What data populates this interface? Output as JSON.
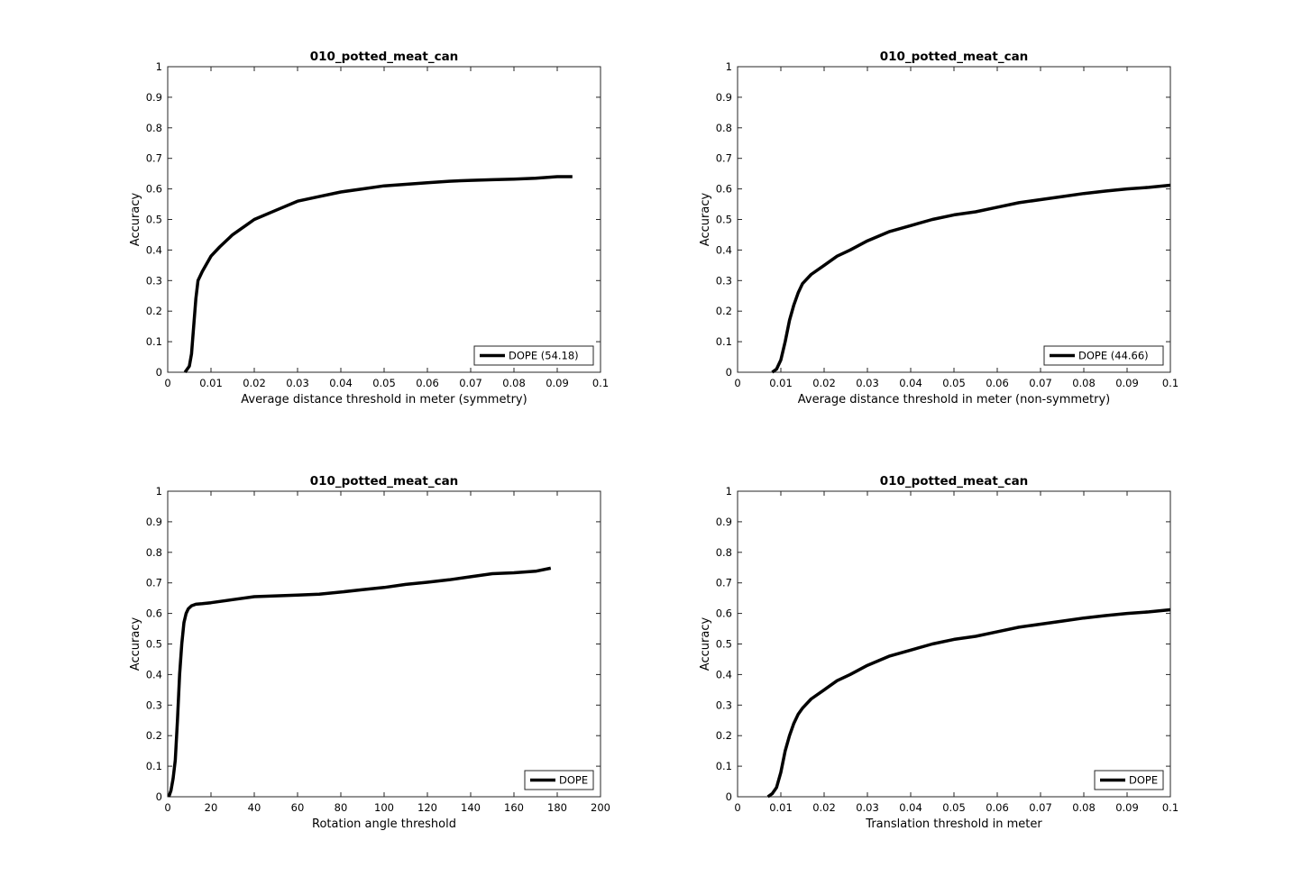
{
  "chart_data": [
    {
      "type": "line",
      "title": "010_potted_meat_can",
      "xlabel": "Average distance threshold in meter (symmetry)",
      "ylabel": "Accuracy",
      "xlim": [
        0,
        0.1
      ],
      "ylim": [
        0,
        1
      ],
      "xticks": [
        "0",
        "0.01",
        "0.02",
        "0.03",
        "0.04",
        "0.05",
        "0.06",
        "0.07",
        "0.08",
        "0.09",
        "0.1"
      ],
      "yticks": [
        "0",
        "0.1",
        "0.2",
        "0.3",
        "0.4",
        "0.5",
        "0.6",
        "0.7",
        "0.8",
        "0.9",
        "1"
      ],
      "grid": false,
      "legend_position": "bottom-right",
      "series": [
        {
          "name": "DOPE (54.18)",
          "color": "#000000",
          "x": [
            0.004,
            0.005,
            0.0055,
            0.006,
            0.0065,
            0.007,
            0.008,
            0.01,
            0.012,
            0.015,
            0.018,
            0.02,
            0.025,
            0.03,
            0.035,
            0.04,
            0.045,
            0.05,
            0.055,
            0.06,
            0.065,
            0.07,
            0.075,
            0.08,
            0.085,
            0.09,
            0.0935
          ],
          "y": [
            0,
            0.02,
            0.06,
            0.15,
            0.24,
            0.3,
            0.33,
            0.38,
            0.41,
            0.45,
            0.48,
            0.5,
            0.53,
            0.56,
            0.575,
            0.59,
            0.6,
            0.61,
            0.615,
            0.62,
            0.625,
            0.628,
            0.63,
            0.632,
            0.635,
            0.64,
            0.64
          ]
        }
      ]
    },
    {
      "type": "line",
      "title": "010_potted_meat_can",
      "xlabel": "Average distance threshold in meter (non-symmetry)",
      "ylabel": "Accuracy",
      "xlim": [
        0,
        0.1
      ],
      "ylim": [
        0,
        1
      ],
      "xticks": [
        "0",
        "0.01",
        "0.02",
        "0.03",
        "0.04",
        "0.05",
        "0.06",
        "0.07",
        "0.08",
        "0.09",
        "0.1"
      ],
      "yticks": [
        "0",
        "0.1",
        "0.2",
        "0.3",
        "0.4",
        "0.5",
        "0.6",
        "0.7",
        "0.8",
        "0.9",
        "1"
      ],
      "grid": false,
      "legend_position": "bottom-right",
      "series": [
        {
          "name": "DOPE (44.66)",
          "color": "#000000",
          "x": [
            0.008,
            0.009,
            0.01,
            0.011,
            0.012,
            0.013,
            0.014,
            0.015,
            0.017,
            0.02,
            0.023,
            0.026,
            0.03,
            0.035,
            0.04,
            0.045,
            0.05,
            0.055,
            0.06,
            0.065,
            0.07,
            0.075,
            0.08,
            0.085,
            0.09,
            0.095,
            0.1
          ],
          "y": [
            0,
            0.01,
            0.04,
            0.1,
            0.17,
            0.22,
            0.26,
            0.29,
            0.32,
            0.35,
            0.38,
            0.4,
            0.43,
            0.46,
            0.48,
            0.5,
            0.515,
            0.525,
            0.54,
            0.555,
            0.565,
            0.575,
            0.585,
            0.593,
            0.6,
            0.605,
            0.612
          ]
        }
      ]
    },
    {
      "type": "line",
      "title": "010_potted_meat_can",
      "xlabel": "Rotation angle threshold",
      "ylabel": "Accuracy",
      "xlim": [
        0,
        200
      ],
      "ylim": [
        0,
        1
      ],
      "xticks": [
        "0",
        "20",
        "40",
        "60",
        "80",
        "100",
        "120",
        "140",
        "160",
        "180",
        "200"
      ],
      "yticks": [
        "0",
        "0.1",
        "0.2",
        "0.3",
        "0.4",
        "0.5",
        "0.6",
        "0.7",
        "0.8",
        "0.9",
        "1"
      ],
      "grid": false,
      "legend_position": "bottom-right",
      "series": [
        {
          "name": "DOPE",
          "color": "#000000",
          "x": [
            0.5,
            1.5,
            2.5,
            3.5,
            4.5,
            5.5,
            6.5,
            7.5,
            8.5,
            9.5,
            11,
            13,
            16,
            20,
            30,
            40,
            60,
            70,
            80,
            90,
            100,
            110,
            120,
            130,
            140,
            150,
            160,
            170,
            177
          ],
          "y": [
            0,
            0.02,
            0.06,
            0.12,
            0.25,
            0.4,
            0.5,
            0.57,
            0.6,
            0.615,
            0.625,
            0.63,
            0.632,
            0.635,
            0.645,
            0.655,
            0.66,
            0.663,
            0.67,
            0.678,
            0.685,
            0.695,
            0.702,
            0.71,
            0.72,
            0.73,
            0.733,
            0.738,
            0.748
          ]
        }
      ]
    },
    {
      "type": "line",
      "title": "010_potted_meat_can",
      "xlabel": "Translation threshold in meter",
      "ylabel": "Accuracy",
      "xlim": [
        0,
        0.1
      ],
      "ylim": [
        0,
        1
      ],
      "xticks": [
        "0",
        "0.01",
        "0.02",
        "0.03",
        "0.04",
        "0.05",
        "0.06",
        "0.07",
        "0.08",
        "0.09",
        "0.1"
      ],
      "yticks": [
        "0",
        "0.1",
        "0.2",
        "0.3",
        "0.4",
        "0.5",
        "0.6",
        "0.7",
        "0.8",
        "0.9",
        "1"
      ],
      "grid": false,
      "legend_position": "bottom-right",
      "series": [
        {
          "name": "DOPE",
          "color": "#000000",
          "x": [
            0.007,
            0.008,
            0.009,
            0.01,
            0.011,
            0.012,
            0.013,
            0.014,
            0.015,
            0.017,
            0.02,
            0.023,
            0.026,
            0.03,
            0.035,
            0.04,
            0.045,
            0.05,
            0.055,
            0.06,
            0.065,
            0.07,
            0.075,
            0.08,
            0.085,
            0.09,
            0.095,
            0.1
          ],
          "y": [
            0,
            0.01,
            0.03,
            0.08,
            0.15,
            0.2,
            0.24,
            0.27,
            0.29,
            0.32,
            0.35,
            0.38,
            0.4,
            0.43,
            0.46,
            0.48,
            0.5,
            0.515,
            0.525,
            0.54,
            0.555,
            0.565,
            0.575,
            0.585,
            0.593,
            0.6,
            0.605,
            0.612
          ]
        }
      ]
    }
  ]
}
